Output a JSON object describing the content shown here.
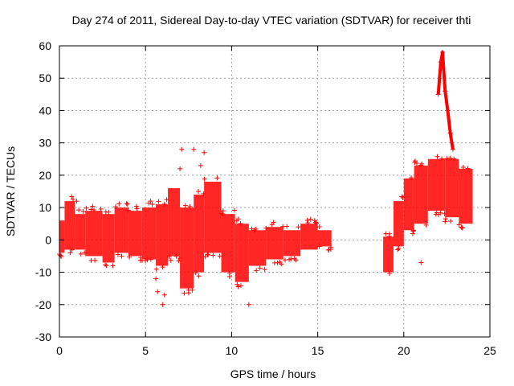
{
  "chart_data": {
    "type": "scatter",
    "title": "Day 274 of 2011, Sidereal Day-to-day VTEC variation (SDTVAR) for receiver thti",
    "xlabel": "GPS time / hours",
    "ylabel": "SDTVAR / TECUs",
    "xlim": [
      0,
      25
    ],
    "ylim": [
      -30,
      60
    ],
    "xticks": [
      "0",
      "5",
      "10",
      "15",
      "20",
      "25"
    ],
    "yticks": [
      "-30",
      "-20",
      "-10",
      "0",
      "10",
      "20",
      "30",
      "40",
      "50",
      "60"
    ],
    "grid": true,
    "marker": "+",
    "series": [
      {
        "name": "SDTVAR",
        "color": "#ff0000",
        "segments": [
          {
            "x0": 0.0,
            "x1": 0.3,
            "lo": -4,
            "hi": 6
          },
          {
            "x0": 0.3,
            "x1": 0.9,
            "lo": -3,
            "hi": 12
          },
          {
            "x0": 0.9,
            "x1": 1.5,
            "lo": -3,
            "hi": 8
          },
          {
            "x0": 1.5,
            "x1": 2.5,
            "lo": -5,
            "hi": 9
          },
          {
            "x0": 2.5,
            "x1": 3.2,
            "lo": -7,
            "hi": 8
          },
          {
            "x0": 3.2,
            "x1": 4.0,
            "lo": -4,
            "hi": 10
          },
          {
            "x0": 4.0,
            "x1": 4.8,
            "lo": -5,
            "hi": 9
          },
          {
            "x0": 4.8,
            "x1": 5.6,
            "lo": -6,
            "hi": 10
          },
          {
            "x0": 5.6,
            "x1": 6.3,
            "lo": -8,
            "hi": 11
          },
          {
            "x0": 6.3,
            "x1": 7.0,
            "lo": -5,
            "hi": 16
          },
          {
            "x0": 7.0,
            "x1": 7.8,
            "lo": -15,
            "hi": 10
          },
          {
            "x0": 7.8,
            "x1": 8.4,
            "lo": -10,
            "hi": 14
          },
          {
            "x0": 8.4,
            "x1": 9.4,
            "lo": -4,
            "hi": 18
          },
          {
            "x0": 9.4,
            "x1": 10.2,
            "lo": -10,
            "hi": 8
          },
          {
            "x0": 10.2,
            "x1": 11.0,
            "lo": -13,
            "hi": 5
          },
          {
            "x0": 11.0,
            "x1": 12.0,
            "lo": -8,
            "hi": 3
          },
          {
            "x0": 12.0,
            "x1": 13.0,
            "lo": -6,
            "hi": 4
          },
          {
            "x0": 13.0,
            "x1": 14.0,
            "lo": -5,
            "hi": 3
          },
          {
            "x0": 14.0,
            "x1": 15.0,
            "lo": -3,
            "hi": 5
          },
          {
            "x0": 15.0,
            "x1": 15.8,
            "lo": -2,
            "hi": 3
          },
          {
            "x0": 18.8,
            "x1": 19.4,
            "lo": -10,
            "hi": 1
          },
          {
            "x0": 19.4,
            "x1": 20.0,
            "lo": -2,
            "hi": 12
          },
          {
            "x0": 20.0,
            "x1": 20.6,
            "lo": 3,
            "hi": 19
          },
          {
            "x0": 20.6,
            "x1": 21.4,
            "lo": 5,
            "hi": 23
          },
          {
            "x0": 21.4,
            "x1": 22.4,
            "lo": 9,
            "hi": 25
          },
          {
            "x0": 22.4,
            "x1": 23.2,
            "lo": 7,
            "hi": 25
          },
          {
            "x0": 23.2,
            "x1": 24.0,
            "lo": 5,
            "hi": 22
          }
        ],
        "spike": [
          {
            "x": 22.0,
            "y": 45
          },
          {
            "x": 22.15,
            "y": 55
          },
          {
            "x": 22.25,
            "y": 58
          },
          {
            "x": 22.4,
            "y": 46
          },
          {
            "x": 22.55,
            "y": 40
          },
          {
            "x": 22.7,
            "y": 33
          },
          {
            "x": 22.85,
            "y": 28
          }
        ],
        "outliers": [
          {
            "x": 5.6,
            "y": -12
          },
          {
            "x": 5.7,
            "y": -16
          },
          {
            "x": 6.0,
            "y": -20
          },
          {
            "x": 6.1,
            "y": -17
          },
          {
            "x": 7.0,
            "y": 22
          },
          {
            "x": 7.1,
            "y": 28
          },
          {
            "x": 7.8,
            "y": 28
          },
          {
            "x": 8.2,
            "y": 23
          },
          {
            "x": 8.4,
            "y": 27
          },
          {
            "x": 11.0,
            "y": -20
          },
          {
            "x": 21.0,
            "y": -7
          },
          {
            "x": 5.3,
            "y": 12
          },
          {
            "x": 1.0,
            "y": 12
          }
        ]
      }
    ]
  }
}
